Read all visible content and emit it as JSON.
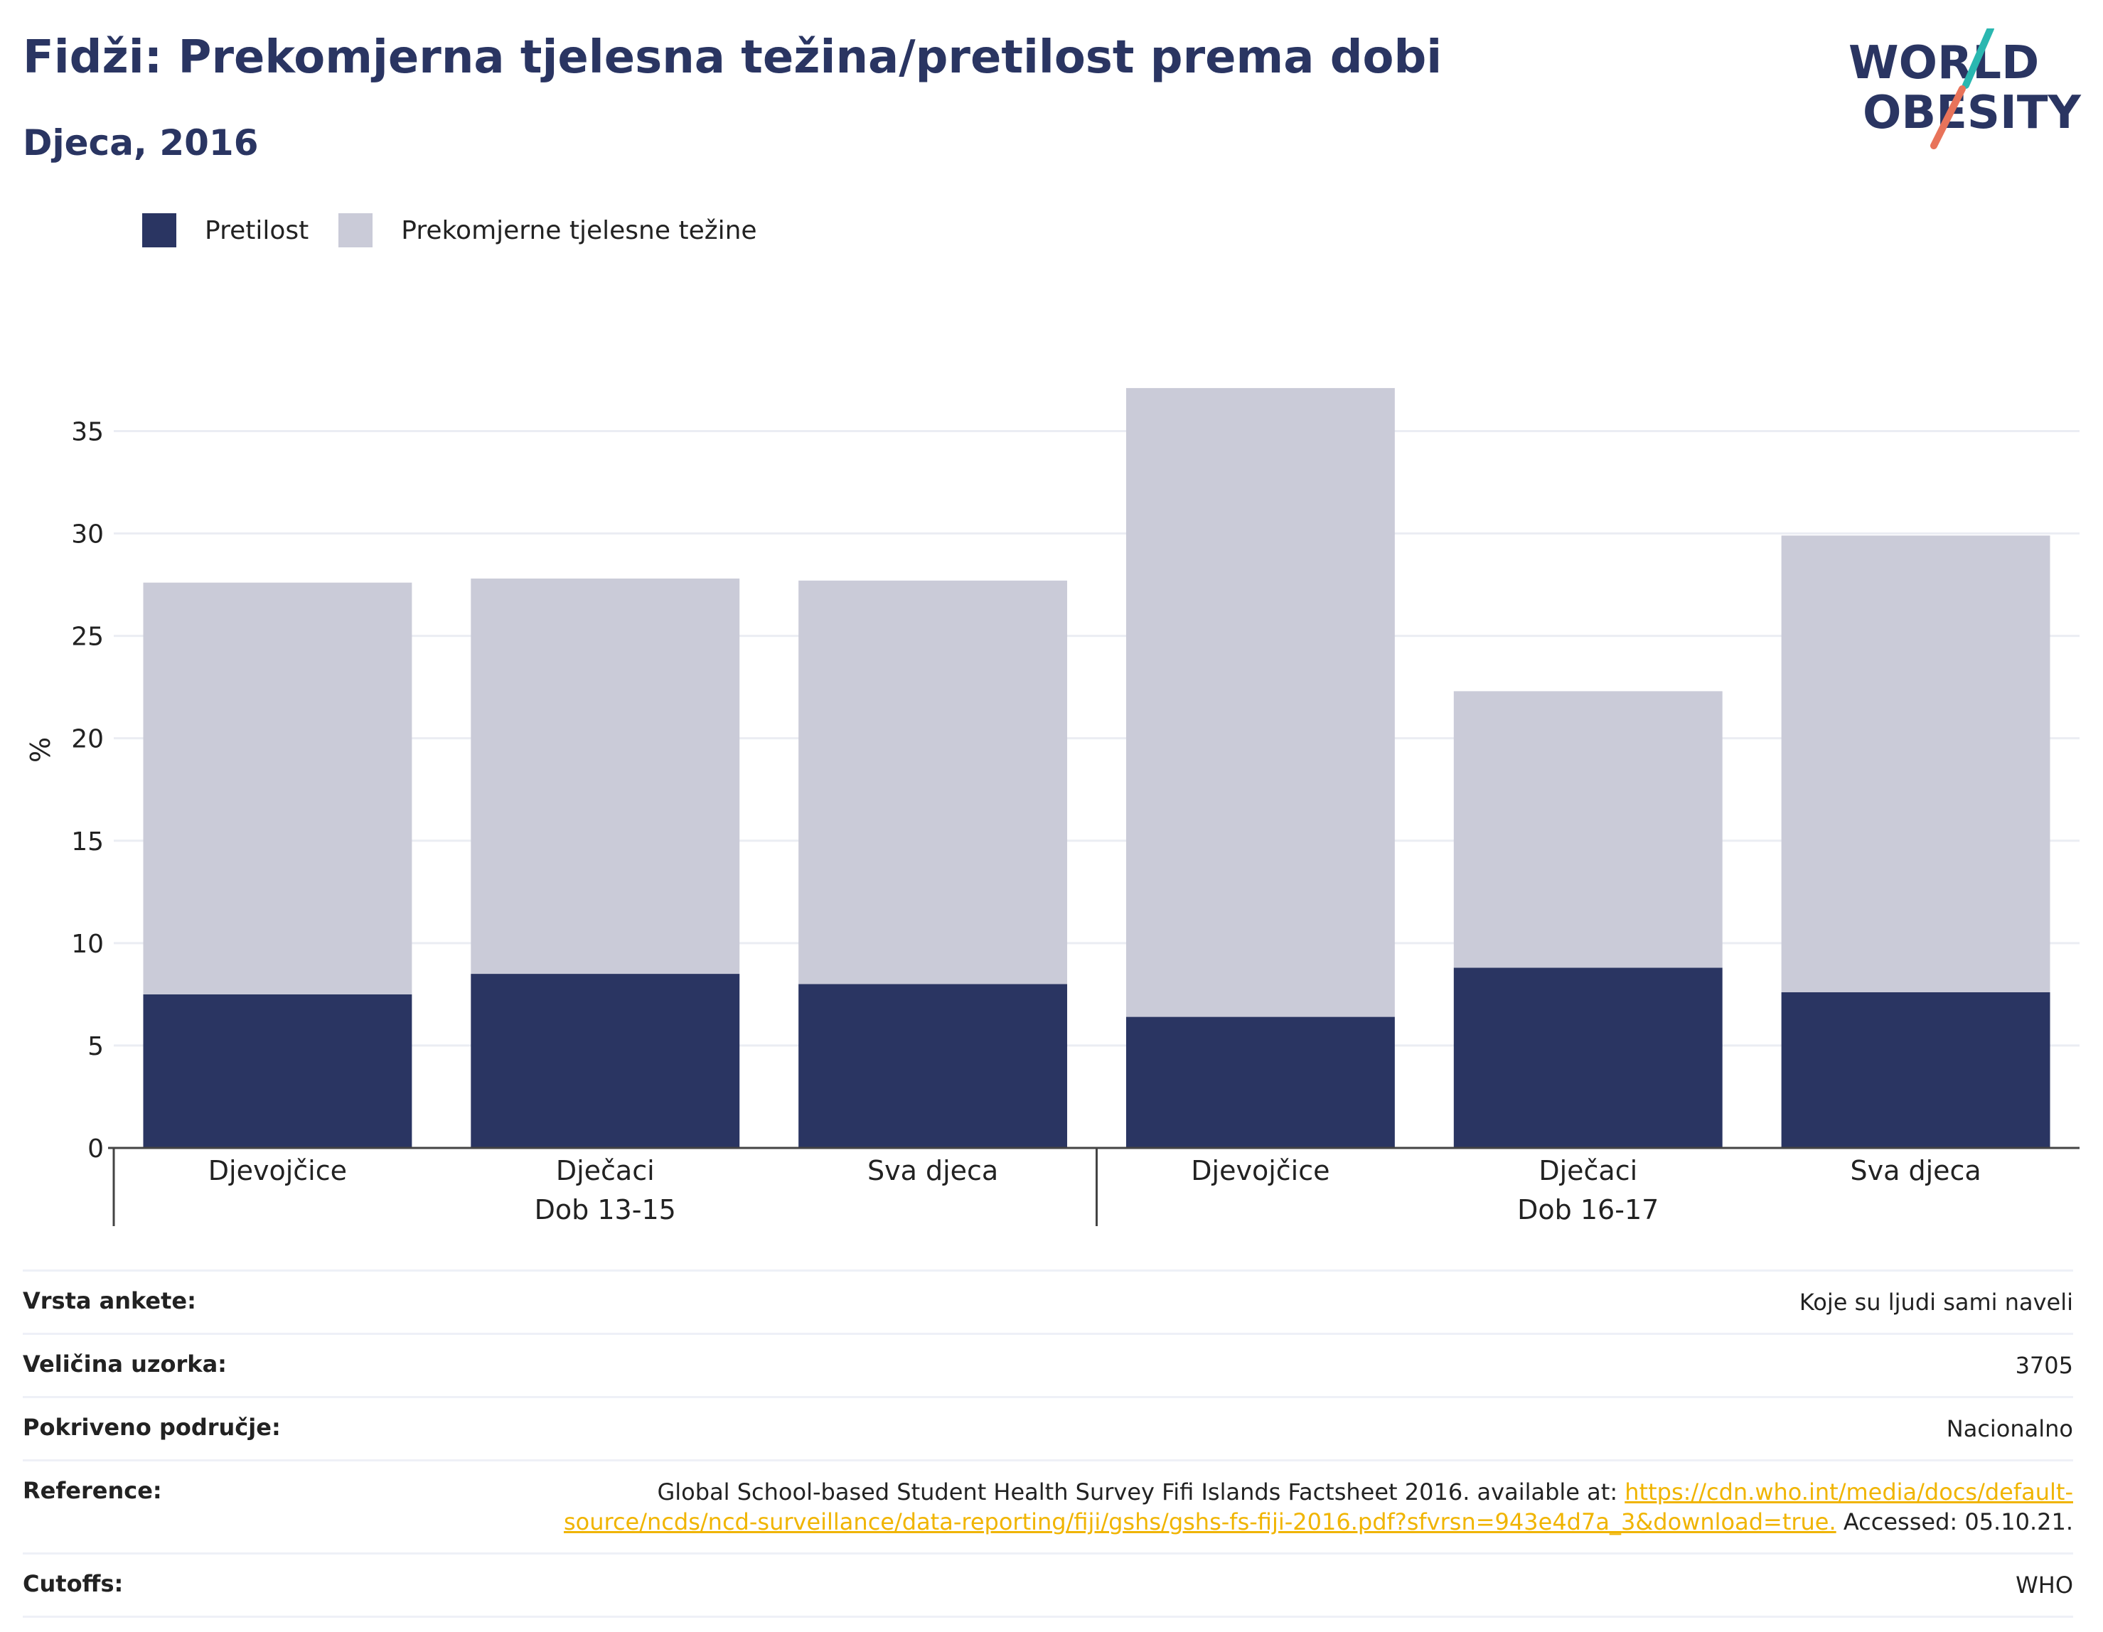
{
  "header": {
    "title": "Fidži: Prekomjerna tjelesna težina/pretilost prema dobi",
    "subtitle": "Djeca, 2016"
  },
  "logo": {
    "line1": "WORLD",
    "line2": "OBESITY",
    "icon": "world-obesity-logo"
  },
  "colors": {
    "obesity": "#2a3562",
    "overweight": "#cacbd8",
    "accent_teal": "#2ab7b0",
    "accent_coral": "#e8735a",
    "link": "#f0b400"
  },
  "legend": {
    "items": [
      {
        "label": "Pretilost",
        "color": "#2a3562"
      },
      {
        "label": "Prekomjerne tjelesne težine",
        "color": "#cacbd8"
      }
    ]
  },
  "chart_data": {
    "type": "bar",
    "stacked": true,
    "categories": [
      "Djevojčice",
      "Dječaci",
      "Sva djeca",
      "Djevojčice",
      "Dječaci",
      "Sva djeca"
    ],
    "groups": [
      {
        "label": "Dob 13-15",
        "count": 3
      },
      {
        "label": "Dob 16-17",
        "count": 3
      }
    ],
    "series": [
      {
        "name": "Pretilost",
        "values": [
          7.5,
          8.5,
          8.0,
          6.4,
          8.8,
          7.6
        ]
      },
      {
        "name": "Prekomjerne tjelesne težine",
        "values": [
          20.1,
          19.3,
          19.7,
          30.7,
          13.5,
          22.3
        ]
      }
    ],
    "ylabel": "%",
    "ylim": [
      0,
      38
    ],
    "yticks": [
      0,
      5,
      10,
      15,
      20,
      25,
      30,
      35
    ],
    "grid": true,
    "legend_position": "top-left"
  },
  "info": {
    "rows": [
      {
        "label": "Vrsta ankete:",
        "value": "Koje su ljudi sami naveli"
      },
      {
        "label": "Veličina uzorka:",
        "value": "3705"
      },
      {
        "label": "Pokriveno područje:",
        "value": "Nacionalno"
      },
      {
        "label": "Reference:",
        "value_prefix": "Global School-based Student Health Survey Fifi Islands Factsheet 2016. available at: ",
        "link": "https://cdn.who.int/media/docs/default-source/ncds/ncd-surveillance/data-reporting/fiji/gshs/gshs-fs-fiji-2016.pdf?sfvrsn=943e4d7a_3&download=true.",
        "value_suffix": " Accessed: 05.10.21."
      },
      {
        "label": "Cutoffs:",
        "value": "WHO"
      }
    ]
  }
}
